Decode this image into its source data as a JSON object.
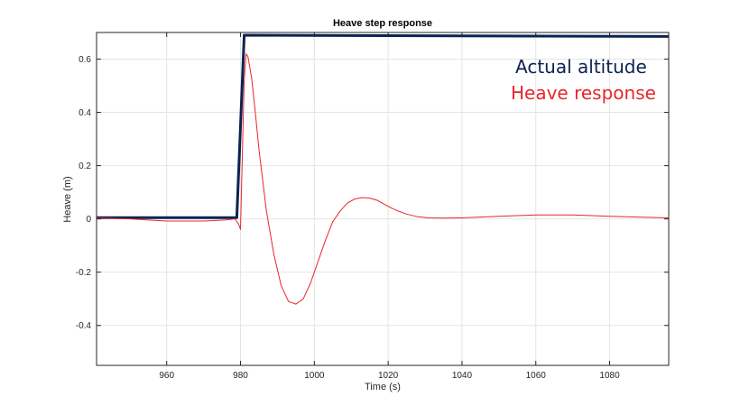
{
  "chart_data": {
    "type": "line",
    "title": "Heave step response",
    "xlabel": "Time (s)",
    "ylabel": "Heave (m)",
    "xlim": [
      941,
      1096
    ],
    "ylim": [
      -0.55,
      0.7
    ],
    "xticks": [
      960,
      980,
      1000,
      1020,
      1040,
      1060,
      1080
    ],
    "yticks": [
      -0.4,
      -0.2,
      0,
      0.2,
      0.4,
      0.6
    ],
    "ytick_labels": [
      "-0.4",
      "-0.2",
      "0",
      "0.2",
      "0.4",
      "0.6"
    ],
    "grid": true,
    "legend_position": "top-right",
    "series": [
      {
        "name": "Actual altitude",
        "color": "#0b2350",
        "x": [
          941,
          979,
          981,
          1096
        ],
        "y": [
          0.005,
          0.005,
          0.69,
          0.685
        ]
      },
      {
        "name": "Heave response",
        "color": "#e8262b",
        "x": [
          941,
          950,
          960,
          970,
          976,
          978.5,
          979.5,
          980,
          980.5,
          981,
          981.5,
          982,
          983,
          984,
          985,
          987,
          989,
          991,
          993,
          995,
          997,
          999,
          1001,
          1003,
          1005,
          1007,
          1009,
          1011,
          1013,
          1015,
          1017,
          1019,
          1021,
          1023,
          1025,
          1028,
          1031,
          1035,
          1040,
          1050,
          1060,
          1070,
          1080,
          1090,
          1096
        ],
        "y": [
          0.004,
          0.0,
          -0.008,
          -0.008,
          -0.004,
          0.0,
          -0.02,
          -0.04,
          0.25,
          0.52,
          0.62,
          0.61,
          0.53,
          0.4,
          0.26,
          0.03,
          -0.13,
          -0.25,
          -0.31,
          -0.32,
          -0.3,
          -0.24,
          -0.16,
          -0.08,
          -0.01,
          0.03,
          0.06,
          0.075,
          0.08,
          0.078,
          0.07,
          0.055,
          0.04,
          0.028,
          0.018,
          0.008,
          0.004,
          0.003,
          0.004,
          0.01,
          0.015,
          0.015,
          0.01,
          0.006,
          0.004
        ]
      }
    ]
  }
}
